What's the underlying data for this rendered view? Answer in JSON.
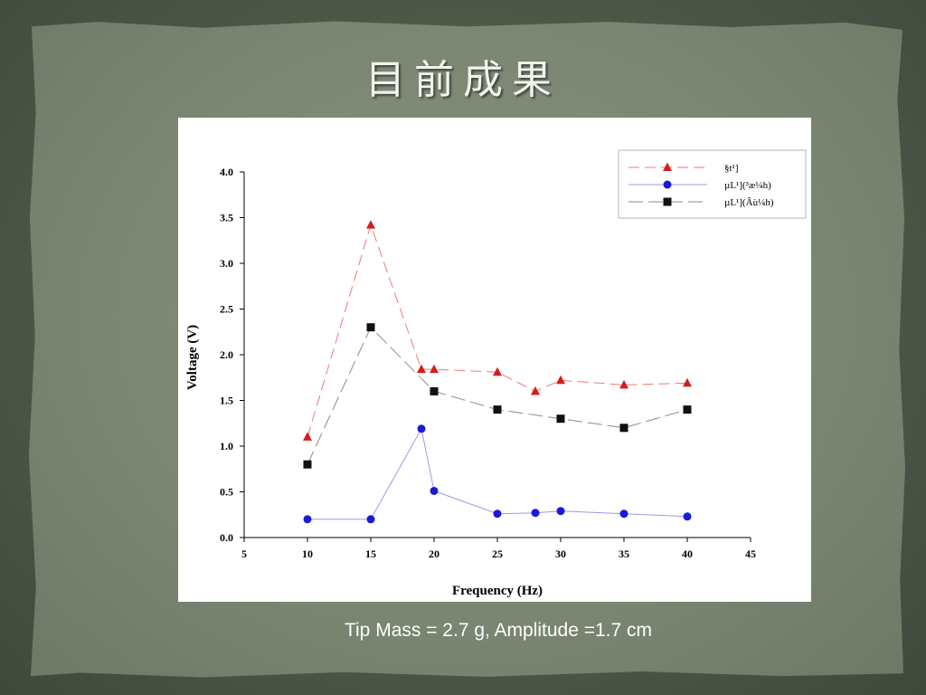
{
  "slide": {
    "title": "目前成果",
    "caption": "Tip Mass = 2.7 g, Amplitude =1.7 cm"
  },
  "colors": {
    "series_red": "#d61c1c",
    "series_blue": "#1a1ad6",
    "series_black": "#111111",
    "line_red": "#f07a7a",
    "line_blue": "#9b9bea",
    "line_black": "#8a8a8a"
  },
  "chart_data": {
    "type": "line",
    "title": "",
    "xlabel": "Frequency (Hz)",
    "ylabel": "Voltage (V)",
    "xlim": [
      5,
      45
    ],
    "ylim": [
      0,
      4
    ],
    "xticks": [
      "5",
      "10",
      "15",
      "20",
      "25",
      "30",
      "35",
      "40",
      "45"
    ],
    "yticks": [
      "0.0",
      "0.5",
      "1.0",
      "1.5",
      "2.0",
      "2.5",
      "3.0",
      "3.5",
      "4.0"
    ],
    "legend_position": "top-right",
    "grid": false,
    "series": [
      {
        "name": "§t¹]",
        "marker": "triangle",
        "line": "dashed",
        "points": [
          [
            10,
            1.1
          ],
          [
            15,
            3.42
          ],
          [
            19,
            1.84
          ],
          [
            20,
            1.84
          ],
          [
            25,
            1.81
          ],
          [
            28,
            1.6
          ],
          [
            30,
            1.72
          ],
          [
            35,
            1.67
          ],
          [
            40,
            1.69
          ]
        ]
      },
      {
        "name": "µL¹](³æ¼h)",
        "marker": "circle",
        "line": "solid",
        "points": [
          [
            10,
            0.2
          ],
          [
            15,
            0.2
          ],
          [
            19,
            1.19
          ],
          [
            20,
            0.51
          ],
          [
            25,
            0.26
          ],
          [
            28,
            0.27
          ],
          [
            30,
            0.29
          ],
          [
            35,
            0.26
          ],
          [
            40,
            0.23
          ]
        ]
      },
      {
        "name": "µL¹](Âù¼h)",
        "marker": "square",
        "line": "dashed",
        "points": [
          [
            10,
            0.8
          ],
          [
            15,
            2.3
          ],
          [
            20,
            1.6
          ],
          [
            25,
            1.4
          ],
          [
            30,
            1.3
          ],
          [
            35,
            1.2
          ],
          [
            40,
            1.4
          ]
        ]
      }
    ]
  }
}
